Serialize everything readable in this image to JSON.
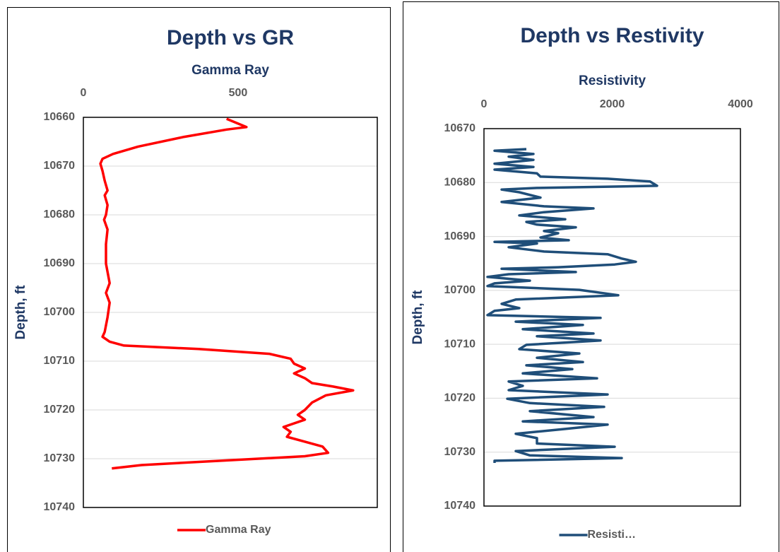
{
  "chart_data": [
    {
      "type": "line",
      "title": "Depth vs GR",
      "x_label": "Gamma Ray",
      "y_label": "Depth, ft",
      "xlim": [
        0,
        950
      ],
      "xticks": [
        0,
        500
      ],
      "ylim": [
        10660,
        10740
      ],
      "y_inverted": true,
      "yticks": [
        10660,
        10670,
        10680,
        10690,
        10700,
        10710,
        10720,
        10730,
        10740
      ],
      "grid": true,
      "legend": "bottom",
      "series": [
        {
          "name": "Gamma Ray",
          "color": "#ff0000",
          "x": [
            463,
            527,
            463,
            326,
            177,
            96,
            62,
            55,
            62,
            69,
            78,
            69,
            78,
            73,
            67,
            78,
            73,
            73,
            85,
            73,
            85,
            78,
            69,
            62,
            85,
            131,
            372,
            601,
            670,
            681,
            716,
            681,
            716,
            739,
            807,
            872,
            784,
            739,
            716,
            693,
            716,
            647,
            670,
            658,
            716,
            773,
            791,
            716,
            417,
            188,
            92
          ],
          "y": [
            10660.3,
            10662,
            10662.5,
            10664,
            10666,
            10667.5,
            10668.5,
            10669.5,
            10671,
            10673,
            10675,
            10676,
            10678,
            10680,
            10681,
            10683,
            10686,
            10690,
            10694,
            10696,
            10698,
            10701,
            10704,
            10705,
            10706,
            10706.8,
            10707.5,
            10708.5,
            10709.5,
            10710.5,
            10711.5,
            10712.5,
            10713.5,
            10714.5,
            10715.2,
            10716,
            10717,
            10718.5,
            10720,
            10721,
            10722,
            10723.5,
            10724.5,
            10725.5,
            10726.5,
            10727.5,
            10728.8,
            10729.5,
            10730.5,
            10731.3,
            10732
          ]
        }
      ]
    },
    {
      "type": "line",
      "title": "Depth vs Restivity",
      "x_label": "Resistivity",
      "y_label": "Depth, ft",
      "xlim": [
        0,
        4000
      ],
      "xticks": [
        0,
        2000,
        4000
      ],
      "ylim": [
        10670,
        10740
      ],
      "y_inverted": true,
      "yticks": [
        10670,
        10680,
        10690,
        10700,
        10710,
        10720,
        10730,
        10740
      ],
      "grid": true,
      "legend": "bottom",
      "series": [
        {
          "name": "Resisti…",
          "color": "#1f4e79",
          "x": [
            661,
            165,
            771,
            386,
            771,
            165,
            771,
            165,
            826,
            882,
            1928,
            2589,
            2700,
            826,
            275,
            551,
            882,
            275,
            937,
            1708,
            937,
            551,
            1267,
            661,
            826,
            1433,
            937,
            1157,
            882,
            1322,
            165,
            826,
            386,
            937,
            1928,
            2149,
            2369,
            2039,
            1157,
            275,
            1433,
            386,
            55,
            716,
            165,
            55,
            1488,
            2094,
            496,
            275,
            551,
            165,
            55,
            1818,
            496,
            1543,
            606,
            1708,
            826,
            1818,
            661,
            551,
            1488,
            826,
            1543,
            661,
            1377,
            606,
            1763,
            386,
            606,
            386,
            1928,
            364,
            716,
            1873,
            716,
            1708,
            606,
            1928,
            1267,
            496,
            826,
            826,
            2039,
            496,
            716,
            2149,
            165,
            165
          ],
          "y": [
            10673.8,
            10674.1,
            10674.7,
            10675.2,
            10675.8,
            10676.5,
            10677.1,
            10677.6,
            10678.3,
            10678.9,
            10679.3,
            10679.8,
            10680.6,
            10681,
            10681.3,
            10681.8,
            10682.8,
            10683.6,
            10684.4,
            10684.8,
            10685.5,
            10686.1,
            10686.8,
            10687.3,
            10687.8,
            10688.3,
            10689,
            10689.4,
            10690.2,
            10690.7,
            10691,
            10691.3,
            10692,
            10692.8,
            10693.3,
            10694.1,
            10694.7,
            10695.2,
            10695.7,
            10696,
            10696.6,
            10697,
            10697.5,
            10698.2,
            10698.7,
            10699.2,
            10699.9,
            10700.9,
            10701.7,
            10702.5,
            10703.3,
            10703.8,
            10704.6,
            10705.1,
            10705.8,
            10706.4,
            10707.2,
            10708,
            10708.5,
            10709.3,
            10710.1,
            10710.9,
            10711.7,
            10712.5,
            10713.3,
            10713.9,
            10714.6,
            10715.4,
            10716.3,
            10716.9,
            10717.7,
            10718.5,
            10719.3,
            10720.1,
            10720.9,
            10721.6,
            10722.4,
            10723.5,
            10724.3,
            10724.9,
            10725.7,
            10726.6,
            10727.4,
            10728.4,
            10729,
            10729.8,
            10730.6,
            10731.1,
            10731.6,
            10732
          ]
        }
      ]
    }
  ]
}
